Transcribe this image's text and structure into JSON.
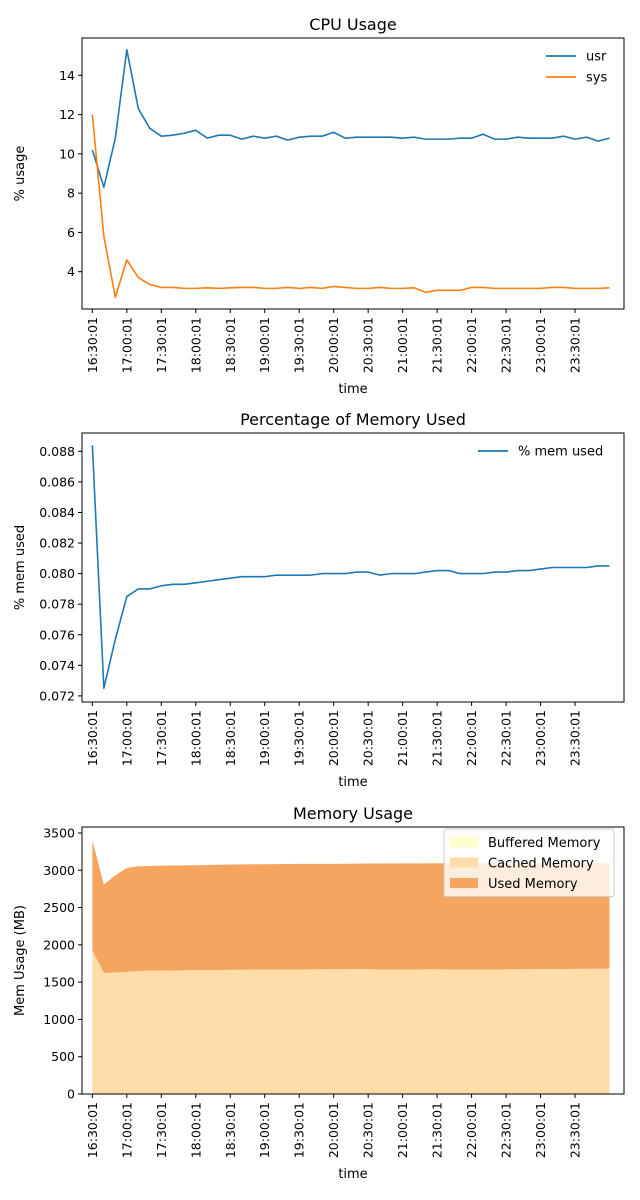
{
  "chart_data": [
    {
      "type": "line",
      "title": "CPU Usage",
      "xlabel": "time",
      "ylabel": "% usage",
      "xticks": [
        "16:30:01",
        "17:00:01",
        "17:30:01",
        "18:00:01",
        "18:30:01",
        "19:00:01",
        "19:30:01",
        "20:00:01",
        "20:30:01",
        "21:00:01",
        "21:30:01",
        "22:00:01",
        "22:30:01",
        "23:00:01",
        "23:30:01"
      ],
      "xlim": [
        -0.15,
        7.71
      ],
      "ylim": [
        2.1,
        15.9
      ],
      "yticks": [
        4,
        6,
        8,
        10,
        12,
        14
      ],
      "legend": "top-right",
      "grid": false,
      "x": [
        0,
        0.167,
        0.333,
        0.5,
        0.667,
        0.833,
        1,
        1.167,
        1.333,
        1.5,
        1.667,
        1.833,
        2,
        2.167,
        2.333,
        2.5,
        2.667,
        2.833,
        3,
        3.167,
        3.333,
        3.5,
        3.667,
        3.833,
        4,
        4.167,
        4.333,
        4.5,
        4.667,
        4.833,
        5,
        5.167,
        5.333,
        5.5,
        5.667,
        5.833,
        6,
        6.167,
        6.333,
        6.5,
        6.667,
        6.833,
        7,
        7.167,
        7.333,
        7.5
      ],
      "series": [
        {
          "name": "usr",
          "color": "#1f77b4",
          "values": [
            10.2,
            8.3,
            10.8,
            15.3,
            12.3,
            11.3,
            10.9,
            10.95,
            11.05,
            11.2,
            10.8,
            10.95,
            10.95,
            10.75,
            10.9,
            10.8,
            10.9,
            10.7,
            10.85,
            10.9,
            10.9,
            11.1,
            10.8,
            10.85,
            10.85,
            10.85,
            10.85,
            10.8,
            10.85,
            10.75,
            10.75,
            10.75,
            10.8,
            10.8,
            11.0,
            10.75,
            10.75,
            10.85,
            10.8,
            10.8,
            10.8,
            10.9,
            10.75,
            10.85,
            10.65,
            10.8
          ]
        },
        {
          "name": "sys",
          "color": "#ff7f0e",
          "values": [
            12.0,
            5.8,
            2.7,
            4.6,
            3.7,
            3.35,
            3.2,
            3.2,
            3.15,
            3.15,
            3.18,
            3.15,
            3.18,
            3.2,
            3.2,
            3.15,
            3.15,
            3.2,
            3.15,
            3.2,
            3.15,
            3.25,
            3.2,
            3.15,
            3.15,
            3.2,
            3.15,
            3.15,
            3.18,
            2.95,
            3.05,
            3.05,
            3.05,
            3.2,
            3.2,
            3.15,
            3.15,
            3.15,
            3.15,
            3.15,
            3.2,
            3.2,
            3.15,
            3.15,
            3.15,
            3.18
          ]
        }
      ]
    },
    {
      "type": "line",
      "title": "Percentage of Memory Used",
      "xlabel": "time",
      "ylabel": "% mem used",
      "xticks": [
        "16:30:01",
        "17:00:01",
        "17:30:01",
        "18:00:01",
        "18:30:01",
        "19:00:01",
        "19:30:01",
        "20:00:01",
        "20:30:01",
        "21:00:01",
        "21:30:01",
        "22:00:01",
        "22:30:01",
        "23:00:01",
        "23:30:01"
      ],
      "xlim": [
        -0.15,
        7.71
      ],
      "ylim": [
        0.0716,
        0.0892
      ],
      "yticks": [
        0.072,
        0.074,
        0.076,
        0.078,
        0.08,
        0.082,
        0.084,
        0.086,
        0.088
      ],
      "ytick_labels": [
        "0.072",
        "0.074",
        "0.076",
        "0.078",
        "0.080",
        "0.082",
        "0.084",
        "0.086",
        "0.088"
      ],
      "legend": "top-right",
      "grid": false,
      "x": [
        0,
        0.167,
        0.333,
        0.5,
        0.667,
        0.833,
        1,
        1.167,
        1.333,
        1.5,
        1.667,
        1.833,
        2,
        2.167,
        2.333,
        2.5,
        2.667,
        2.833,
        3,
        3.167,
        3.333,
        3.5,
        3.667,
        3.833,
        4,
        4.167,
        4.333,
        4.5,
        4.667,
        4.833,
        5,
        5.167,
        5.333,
        5.5,
        5.667,
        5.833,
        6,
        6.167,
        6.333,
        6.5,
        6.667,
        6.833,
        7,
        7.167,
        7.333,
        7.5
      ],
      "series": [
        {
          "name": "% mem used",
          "color": "#1f77b4",
          "values": [
            0.0884,
            0.0725,
            0.0757,
            0.0785,
            0.079,
            0.079,
            0.0792,
            0.0793,
            0.0793,
            0.0794,
            0.0795,
            0.0796,
            0.0797,
            0.0798,
            0.0798,
            0.0798,
            0.0799,
            0.0799,
            0.0799,
            0.0799,
            0.08,
            0.08,
            0.08,
            0.0801,
            0.0801,
            0.0799,
            0.08,
            0.08,
            0.08,
            0.0801,
            0.0802,
            0.0802,
            0.08,
            0.08,
            0.08,
            0.0801,
            0.0801,
            0.0802,
            0.0802,
            0.0803,
            0.0804,
            0.0804,
            0.0804,
            0.0804,
            0.0805,
            0.0805
          ]
        }
      ]
    },
    {
      "type": "area",
      "title": "Memory Usage",
      "xlabel": "time",
      "ylabel": "Mem Usage (MB)",
      "xticks": [
        "16:30:01",
        "17:00:01",
        "17:30:01",
        "18:00:01",
        "18:30:01",
        "19:00:01",
        "19:30:01",
        "20:00:01",
        "20:30:01",
        "21:00:01",
        "21:30:01",
        "22:00:01",
        "22:30:01",
        "23:00:01",
        "23:30:01"
      ],
      "xlim": [
        -0.15,
        7.71
      ],
      "ylim": [
        0,
        3580
      ],
      "yticks": [
        0,
        500,
        1000,
        1500,
        2000,
        2500,
        3000,
        3500
      ],
      "legend": "top-right",
      "grid": false,
      "x": [
        0,
        0.167,
        0.333,
        0.5,
        0.667,
        0.833,
        1,
        1.167,
        1.333,
        1.5,
        1.667,
        1.833,
        2,
        2.167,
        2.333,
        2.5,
        2.667,
        2.833,
        3,
        3.167,
        3.333,
        3.5,
        3.667,
        3.833,
        4,
        4.167,
        4.333,
        4.5,
        4.667,
        4.833,
        5,
        5.167,
        5.333,
        5.5,
        5.667,
        5.833,
        6,
        6.167,
        6.333,
        6.5,
        6.667,
        6.833,
        7,
        7.167,
        7.333,
        7.5
      ],
      "stacked": true,
      "series": [
        {
          "name": "Buffered Memory",
          "color": "#ffffcc",
          "values": [
            2,
            2,
            2,
            2,
            2,
            2,
            2,
            2,
            2,
            2,
            2,
            2,
            2,
            2,
            2,
            2,
            2,
            2,
            2,
            2,
            2,
            2,
            2,
            2,
            2,
            2,
            2,
            2,
            2,
            2,
            2,
            2,
            2,
            2,
            2,
            2,
            2,
            2,
            2,
            2,
            2,
            2,
            2,
            2,
            2,
            2
          ]
        },
        {
          "name": "Cached Memory",
          "color": "#fedda8",
          "values": [
            1920,
            1620,
            1625,
            1635,
            1645,
            1650,
            1652,
            1654,
            1656,
            1658,
            1660,
            1661,
            1662,
            1663,
            1664,
            1665,
            1666,
            1667,
            1668,
            1669,
            1670,
            1671,
            1671,
            1672,
            1672,
            1665,
            1666,
            1667,
            1668,
            1669,
            1670,
            1668,
            1665,
            1666,
            1667,
            1668,
            1669,
            1670,
            1671,
            1672,
            1673,
            1674,
            1675,
            1676,
            1677,
            1678
          ]
        },
        {
          "name": "Used Memory",
          "color": "#f5a560",
          "values": [
            1478,
            1188,
            1305,
            1395,
            1405,
            1405,
            1408,
            1407,
            1408,
            1408,
            1409,
            1411,
            1413,
            1414,
            1414,
            1414,
            1414,
            1415,
            1415,
            1415,
            1414,
            1413,
            1415,
            1415,
            1416,
            1423,
            1423,
            1423,
            1423,
            1422,
            1422,
            1424,
            1426,
            1426,
            1426,
            1424,
            1424,
            1423,
            1422,
            1420,
            1419,
            1418,
            1418,
            1417,
            1416,
            1415
          ]
        }
      ]
    }
  ]
}
